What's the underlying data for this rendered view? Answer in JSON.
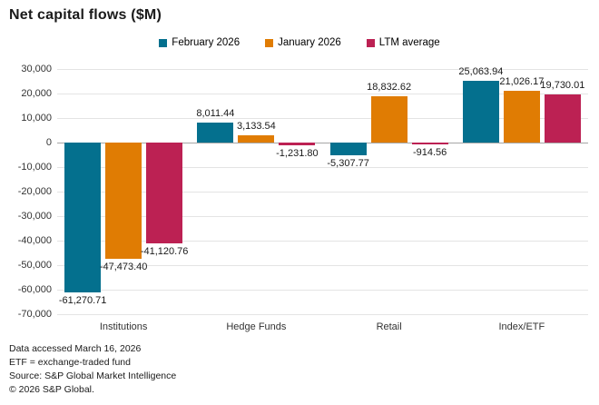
{
  "chart_data": {
    "type": "bar",
    "title": "Net capital flows ($M)",
    "categories": [
      "Institutions",
      "Hedge Funds",
      "Retail",
      "Index/ETF"
    ],
    "series": [
      {
        "name": "February 2026",
        "color": "#04708E",
        "values": [
          -61270.71,
          8011.44,
          -5307.77,
          25063.94
        ]
      },
      {
        "name": "January 2026",
        "color": "#E07C03",
        "values": [
          -47473.4,
          3133.54,
          18832.62,
          21026.17
        ]
      },
      {
        "name": "LTM average",
        "color": "#BC2153",
        "values": [
          -41120.76,
          -1231.8,
          -914.56,
          19730.01
        ]
      }
    ],
    "ylim": [
      -70000,
      30000
    ],
    "ytick_step": 10000,
    "value_label_decimals": 2,
    "grid": "horizontal",
    "legend_position": "top",
    "xlabel": "",
    "ylabel": ""
  },
  "footer": {
    "lines": [
      "Data accessed March 16, 2026",
      "ETF = exchange-traded fund",
      "Source: S&P Global Market Intelligence",
      "© 2026 S&P Global."
    ]
  },
  "colors": {
    "gridline": "#E4E4E4",
    "zero_line": "#A6A6A6",
    "background": "#FFFFFF",
    "text": "#1A1A1A"
  }
}
